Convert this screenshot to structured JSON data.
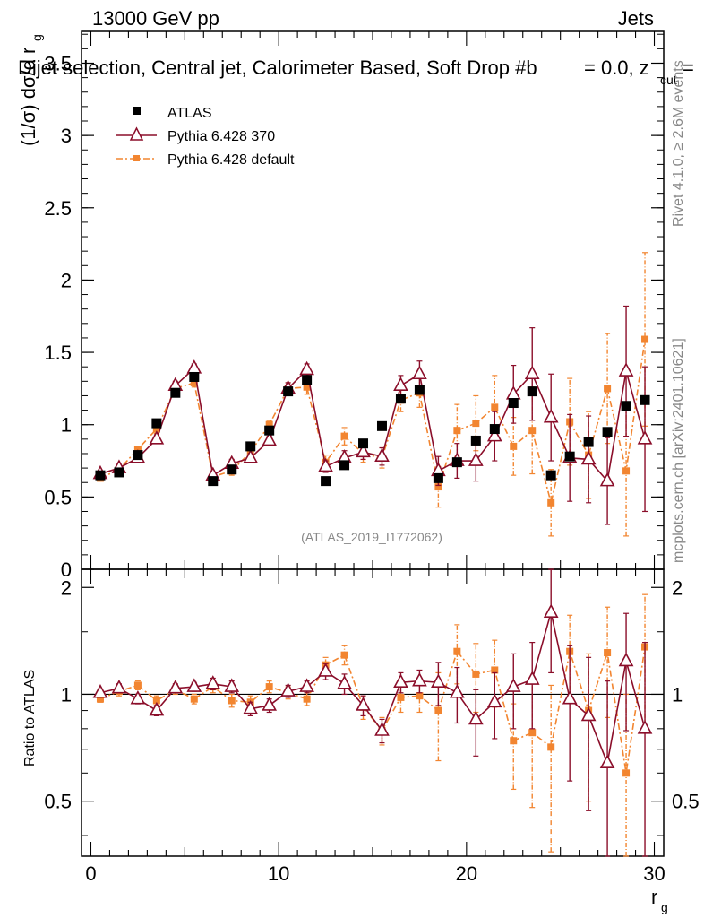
{
  "header": {
    "energy_label": "13000 GeV pp",
    "process_label": "Jets",
    "title_left": "Dijet selection, Central jet, Calorimeter Based, Soft Drop #b",
    "title_right": "= 0.0, z",
    "title_sub": "cut",
    "title_tail": "="
  },
  "side_labels": {
    "rivet": "Rivet 4.1.0, ≥ 2.6M events",
    "mcplots": "mcplots.cern.ch [arXiv:2401.10621]"
  },
  "watermark": "(ATLAS_2019_I1772062)",
  "colors": {
    "atlas": "#000000",
    "pythia370": "#8b0e2a",
    "pythia_default": "#f28530"
  },
  "chart_data": [
    {
      "type": "scatter",
      "panel": "main",
      "ylabel": "(1/σ) dσ/d r",
      "ylabel_sub": "g",
      "xlim": [
        -0.5,
        30.5
      ],
      "ylim": [
        0,
        3.72
      ],
      "yticks": [
        0,
        0.5,
        1,
        1.5,
        2,
        2.5,
        3,
        3.5
      ],
      "ytick_labels": [
        "0",
        "0.5",
        "1",
        "1.5",
        "2",
        "2.5",
        "3",
        "3.5"
      ],
      "x": [
        0.5,
        1.5,
        2.5,
        3.5,
        4.5,
        5.5,
        6.5,
        7.5,
        8.5,
        9.5,
        10.5,
        11.5,
        12.5,
        13.5,
        14.5,
        15.5,
        16.5,
        17.5,
        18.5,
        19.5,
        20.5,
        21.5,
        22.5,
        23.5,
        24.5,
        25.5,
        26.5,
        27.5,
        28.5,
        29.5
      ],
      "series": [
        {
          "name": "ATLAS",
          "style": "square",
          "values": [
            0.65,
            0.67,
            0.79,
            1.01,
            1.22,
            1.33,
            0.61,
            0.69,
            0.85,
            0.96,
            1.23,
            1.31,
            0.61,
            0.72,
            0.87,
            0.99,
            1.18,
            1.24,
            0.63,
            0.74,
            0.89,
            0.97,
            1.15,
            1.23,
            0.65,
            0.78,
            0.88,
            0.95,
            1.13,
            1.17
          ],
          "errors": [
            0.01,
            0.01,
            0.01,
            0.01,
            0.01,
            0.01,
            0.01,
            0.01,
            0.01,
            0.01,
            0.01,
            0.01,
            0.01,
            0.01,
            0.01,
            0.01,
            0.01,
            0.01,
            0.01,
            0.01,
            0.01,
            0.01,
            0.01,
            0.01,
            0.01,
            0.01,
            0.01,
            0.01,
            0.01,
            0.01
          ]
        },
        {
          "name": "Pythia 6.428 370",
          "style": "triangle",
          "values": [
            0.66,
            0.7,
            0.77,
            0.9,
            1.27,
            1.39,
            0.65,
            0.73,
            0.77,
            0.89,
            1.25,
            1.38,
            0.71,
            0.77,
            0.81,
            0.78,
            1.27,
            1.35,
            0.68,
            0.75,
            0.75,
            0.92,
            1.21,
            1.35,
            1.05,
            0.77,
            0.76,
            0.61,
            1.37,
            0.9
          ],
          "errors": [
            0.02,
            0.02,
            0.02,
            0.03,
            0.03,
            0.03,
            0.02,
            0.03,
            0.03,
            0.03,
            0.04,
            0.04,
            0.04,
            0.05,
            0.05,
            0.06,
            0.07,
            0.09,
            0.1,
            0.12,
            0.14,
            0.17,
            0.2,
            0.32,
            0.3,
            0.3,
            0.3,
            0.3,
            0.45,
            0.5
          ]
        },
        {
          "name": "Pythia 6.428 default",
          "style": "small-square",
          "values": [
            0.63,
            0.69,
            0.83,
            0.97,
            1.25,
            1.29,
            0.64,
            0.68,
            0.81,
            1.0,
            1.25,
            1.26,
            0.74,
            0.92,
            0.8,
            0.77,
            1.17,
            1.22,
            0.57,
            0.96,
            1.01,
            1.12,
            0.85,
            0.96,
            0.46,
            1.02,
            0.79,
            1.25,
            0.68,
            1.59
          ],
          "errors": [
            0.02,
            0.02,
            0.02,
            0.03,
            0.03,
            0.03,
            0.02,
            0.03,
            0.03,
            0.03,
            0.04,
            0.05,
            0.05,
            0.06,
            0.06,
            0.07,
            0.08,
            0.1,
            0.14,
            0.18,
            0.19,
            0.22,
            0.2,
            0.3,
            0.23,
            0.3,
            0.3,
            0.38,
            0.45,
            0.6
          ]
        }
      ]
    },
    {
      "type": "scatter",
      "panel": "ratio",
      "ylabel": "Ratio to ATLAS",
      "xlabel": "r",
      "xlabel_sub": "g",
      "xlim": [
        -0.5,
        30.5
      ],
      "ylim": [
        0.35,
        2.25
      ],
      "xticks": [
        0,
        10,
        20,
        30
      ],
      "xtick_labels": [
        "0",
        "10",
        "20",
        "30"
      ],
      "yticks": [
        0.5,
        1,
        2
      ],
      "ytick_labels": [
        "0.5",
        "1",
        "2"
      ],
      "reference": 1.0,
      "x": [
        0.5,
        1.5,
        2.5,
        3.5,
        4.5,
        5.5,
        6.5,
        7.5,
        8.5,
        9.5,
        10.5,
        11.5,
        12.5,
        13.5,
        14.5,
        15.5,
        16.5,
        17.5,
        18.5,
        19.5,
        20.5,
        21.5,
        22.5,
        23.5,
        24.5,
        25.5,
        26.5,
        27.5,
        28.5,
        29.5
      ],
      "series": [
        {
          "name": "Pythia 6.428 370",
          "style": "triangle",
          "values": [
            1.01,
            1.04,
            0.97,
            0.9,
            1.04,
            1.05,
            1.07,
            1.05,
            0.91,
            0.93,
            1.02,
            1.05,
            1.16,
            1.07,
            0.93,
            0.79,
            1.08,
            1.09,
            1.08,
            1.01,
            0.85,
            0.95,
            1.05,
            1.1,
            1.7,
            0.97,
            0.87,
            0.64,
            1.24,
            0.8
          ],
          "errors": [
            0.02,
            0.03,
            0.03,
            0.03,
            0.03,
            0.03,
            0.04,
            0.04,
            0.04,
            0.04,
            0.04,
            0.04,
            0.06,
            0.07,
            0.06,
            0.06,
            0.07,
            0.08,
            0.15,
            0.18,
            0.18,
            0.2,
            0.25,
            0.3,
            0.55,
            0.4,
            0.4,
            0.45,
            0.45,
            0.6
          ]
        },
        {
          "name": "Pythia 6.428 default",
          "style": "small-square",
          "values": [
            0.97,
            1.02,
            1.06,
            0.96,
            1.03,
            0.97,
            1.05,
            0.96,
            0.95,
            1.05,
            1.01,
            0.97,
            1.21,
            1.29,
            0.92,
            0.79,
            0.98,
            0.99,
            0.9,
            1.32,
            1.14,
            1.17,
            0.74,
            0.78,
            0.71,
            1.32,
            0.9,
            1.31,
            0.6,
            1.36
          ],
          "errors": [
            0.02,
            0.03,
            0.03,
            0.03,
            0.03,
            0.03,
            0.04,
            0.04,
            0.04,
            0.04,
            0.04,
            0.04,
            0.06,
            0.08,
            0.07,
            0.07,
            0.09,
            0.1,
            0.25,
            0.25,
            0.25,
            0.25,
            0.2,
            0.3,
            0.35,
            0.35,
            0.4,
            0.45,
            0.4,
            0.55
          ]
        }
      ]
    }
  ]
}
